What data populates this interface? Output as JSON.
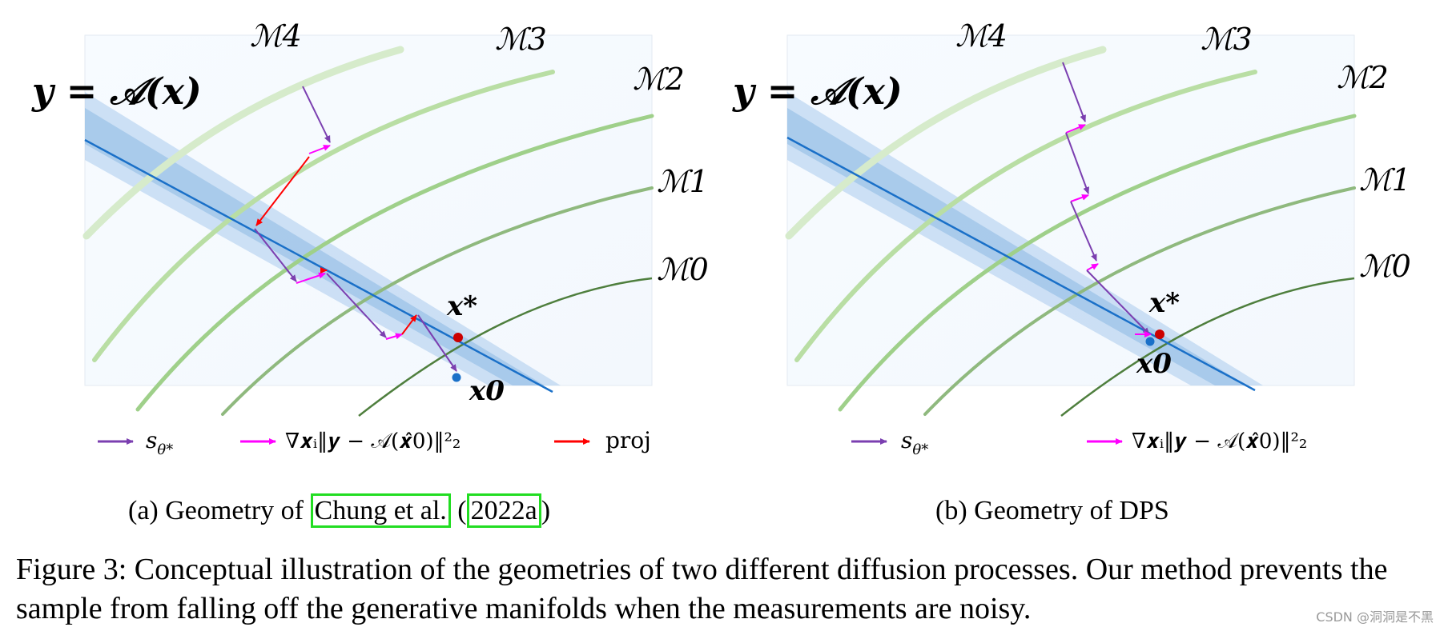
{
  "panel_a": {
    "equation": "𝒚 = 𝒜(𝒙)",
    "manifolds": [
      "ℳ4",
      "ℳ3",
      "ℳ2",
      "ℳ1",
      "ℳ0"
    ],
    "x_star": "𝒙*",
    "x_zero": "𝒙0",
    "legend": {
      "score_label": "s",
      "score_sub": "θ*",
      "grad_label": "∇𝒙ᵢ‖𝒚 − 𝒜(𝒙̂0)‖²₂",
      "proj_label": "proj"
    },
    "caption_prefix": "(a) Geometry of ",
    "caption_cite_author": "Chung et al.",
    "caption_cite_open": " (",
    "caption_cite_year": "2022a",
    "caption_cite_close": ")"
  },
  "panel_b": {
    "equation": "𝒚 = 𝒜(𝒙)",
    "manifolds": [
      "ℳ4",
      "ℳ3",
      "ℳ2",
      "ℳ1",
      "ℳ0"
    ],
    "x_star": "𝒙*",
    "x_zero": "𝒙0",
    "legend": {
      "score_label": "s",
      "score_sub": "θ*",
      "grad_label": "∇𝒙ᵢ‖𝒚 − 𝒜(𝒙̂0)‖²₂"
    },
    "caption": "(b) Geometry of DPS"
  },
  "colors": {
    "score_arrow": "#7b3fb0",
    "grad_arrow": "#ff00ff",
    "proj_arrow": "#ff0000",
    "measurement_line": "#1a70c8",
    "x_star_dot": "#cc0000",
    "x_zero_dot": "#1a70c8",
    "citation_box": "#22dd22"
  },
  "figure_caption": "Figure 3: Conceptual illustration of the geometries of two different diffusion processes. Our method prevents the sample from falling off the generative manifolds when the measurements are noisy.",
  "watermark": "CSDN @洞洞是不黑"
}
